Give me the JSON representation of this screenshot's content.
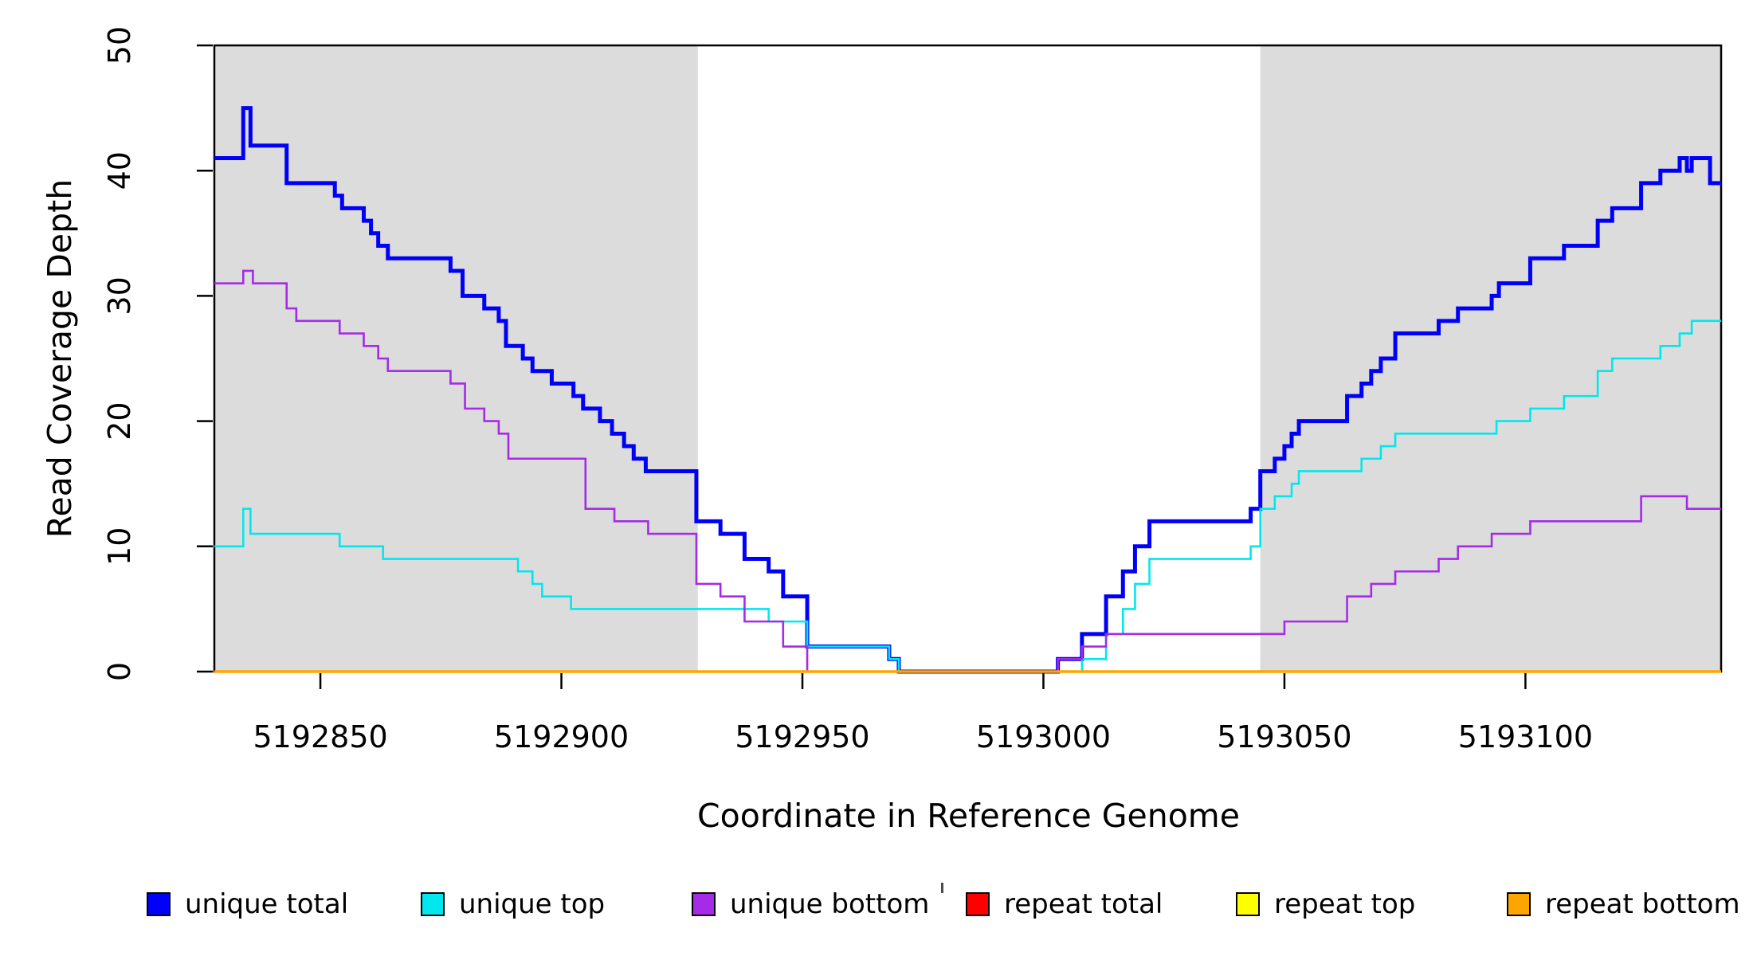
{
  "figure": {
    "background": "#FFFFFF",
    "axis_color": "#000000",
    "shade_color": "#DCDCDC"
  },
  "chart_data": {
    "type": "line",
    "subtype": "step",
    "title": "",
    "xlabel": "Coordinate in Reference Genome",
    "ylabel": "Read Coverage Depth",
    "xlim": [
      5192828,
      5193140.6
    ],
    "ylim": [
      0,
      50
    ],
    "x_ticks": [
      5192850,
      5192900,
      5192950,
      5193000,
      5193050,
      5193100
    ],
    "y_ticks": [
      0,
      10,
      20,
      30,
      40,
      50
    ],
    "grid": false,
    "legend_position": "bottom",
    "shaded_regions": [
      {
        "x0": 5192828,
        "x1": 5192928.3,
        "color": "#DCDCDC"
      },
      {
        "x0": 5193045,
        "x1": 5193140.6,
        "color": "#DCDCDC"
      }
    ],
    "series": [
      {
        "label": "unique total",
        "color": "#0000FA",
        "line_width": 5,
        "points": [
          [
            5192828,
            41
          ],
          [
            5192834,
            45
          ],
          [
            5192835.5,
            42
          ],
          [
            5192843,
            39
          ],
          [
            5192853,
            38
          ],
          [
            5192854.5,
            37
          ],
          [
            5192859,
            36
          ],
          [
            5192860.5,
            35
          ],
          [
            5192862,
            34
          ],
          [
            5192864,
            33
          ],
          [
            5192877,
            32
          ],
          [
            5192879.5,
            30
          ],
          [
            5192884,
            29
          ],
          [
            5192887,
            28
          ],
          [
            5192888.5,
            26
          ],
          [
            5192892,
            25
          ],
          [
            5192894,
            24
          ],
          [
            5192898,
            23
          ],
          [
            5192902.5,
            22
          ],
          [
            5192904.5,
            21
          ],
          [
            5192908,
            20
          ],
          [
            5192910.5,
            19
          ],
          [
            5192913,
            18
          ],
          [
            5192915,
            17
          ],
          [
            5192917.5,
            16
          ],
          [
            5192928,
            12
          ],
          [
            5192933,
            11
          ],
          [
            5192938,
            9
          ],
          [
            5192943,
            8
          ],
          [
            5192946,
            6
          ],
          [
            5192951,
            2
          ],
          [
            5192968,
            1
          ],
          [
            5192970,
            0
          ],
          [
            5193003,
            1
          ],
          [
            5193008,
            3
          ],
          [
            5193013,
            6
          ],
          [
            5193016.5,
            8
          ],
          [
            5193019,
            10
          ],
          [
            5193022,
            12
          ],
          [
            5193043,
            13
          ],
          [
            5193045,
            16
          ],
          [
            5193048,
            17
          ],
          [
            5193050,
            18
          ],
          [
            5193051.5,
            19
          ],
          [
            5193053,
            20
          ],
          [
            5193063,
            22
          ],
          [
            5193066,
            23
          ],
          [
            5193068,
            24
          ],
          [
            5193070,
            25
          ],
          [
            5193073,
            27
          ],
          [
            5193082,
            28
          ],
          [
            5193086,
            29
          ],
          [
            5193093,
            30
          ],
          [
            5193094.5,
            31
          ],
          [
            5193101,
            33
          ],
          [
            5193108,
            34
          ],
          [
            5193115,
            36
          ],
          [
            5193118,
            37
          ],
          [
            5193124,
            39
          ],
          [
            5193128,
            40
          ],
          [
            5193132,
            41
          ],
          [
            5193133.5,
            40
          ],
          [
            5193134.5,
            41
          ],
          [
            5193138.3,
            39
          ]
        ]
      },
      {
        "label": "unique top",
        "color": "#00E8EE",
        "line_width": 2.6,
        "points": [
          [
            5192828,
            10
          ],
          [
            5192834,
            13
          ],
          [
            5192835.5,
            11
          ],
          [
            5192854,
            10
          ],
          [
            5192863,
            9
          ],
          [
            5192891,
            8
          ],
          [
            5192894,
            7
          ],
          [
            5192896,
            6
          ],
          [
            5192902,
            5
          ],
          [
            5192943,
            4
          ],
          [
            5192951,
            2
          ],
          [
            5192968,
            1
          ],
          [
            5192970,
            0
          ],
          [
            5193008,
            1
          ],
          [
            5193013,
            3
          ],
          [
            5193016.5,
            5
          ],
          [
            5193019,
            7
          ],
          [
            5193022,
            9
          ],
          [
            5193043,
            10
          ],
          [
            5193045,
            13
          ],
          [
            5193048,
            14
          ],
          [
            5193051.5,
            15
          ],
          [
            5193053,
            16
          ],
          [
            5193066,
            17
          ],
          [
            5193070,
            18
          ],
          [
            5193073,
            19
          ],
          [
            5193094,
            20
          ],
          [
            5193101,
            21
          ],
          [
            5193108,
            22
          ],
          [
            5193115,
            24
          ],
          [
            5193118,
            25
          ],
          [
            5193128,
            26
          ],
          [
            5193132,
            27
          ],
          [
            5193134.5,
            28
          ]
        ]
      },
      {
        "label": "unique bottom",
        "color": "#A52BE8",
        "line_width": 2.6,
        "points": [
          [
            5192828,
            31
          ],
          [
            5192834,
            32
          ],
          [
            5192836,
            31
          ],
          [
            5192843,
            29
          ],
          [
            5192845,
            28
          ],
          [
            5192854,
            27
          ],
          [
            5192859,
            26
          ],
          [
            5192862,
            25
          ],
          [
            5192864,
            24
          ],
          [
            5192877,
            23
          ],
          [
            5192880,
            21
          ],
          [
            5192884,
            20
          ],
          [
            5192887,
            19
          ],
          [
            5192889,
            17
          ],
          [
            5192905,
            13
          ],
          [
            5192911,
            12
          ],
          [
            5192918,
            11
          ],
          [
            5192928,
            7
          ],
          [
            5192933,
            6
          ],
          [
            5192938,
            4
          ],
          [
            5192946,
            2
          ],
          [
            5192951,
            0
          ],
          [
            5193003,
            1
          ],
          [
            5193008,
            2
          ],
          [
            5193013,
            3
          ],
          [
            5193050,
            4
          ],
          [
            5193063,
            6
          ],
          [
            5193068,
            7
          ],
          [
            5193073,
            8
          ],
          [
            5193082,
            9
          ],
          [
            5193086,
            10
          ],
          [
            5193093,
            11
          ],
          [
            5193101,
            12
          ],
          [
            5193124,
            14
          ],
          [
            5193133.5,
            13
          ]
        ]
      },
      {
        "label": "repeat total",
        "color": "#FF0000",
        "line_width": 2.6,
        "points": [
          [
            5192828,
            0
          ]
        ]
      },
      {
        "label": "repeat top",
        "color": "#FFFF00",
        "line_width": 2.6,
        "points": [
          [
            5192828,
            0
          ]
        ]
      },
      {
        "label": "repeat bottom",
        "color": "#FFA500",
        "line_width": 3.6,
        "points": [
          [
            5192828,
            0
          ]
        ]
      }
    ]
  }
}
